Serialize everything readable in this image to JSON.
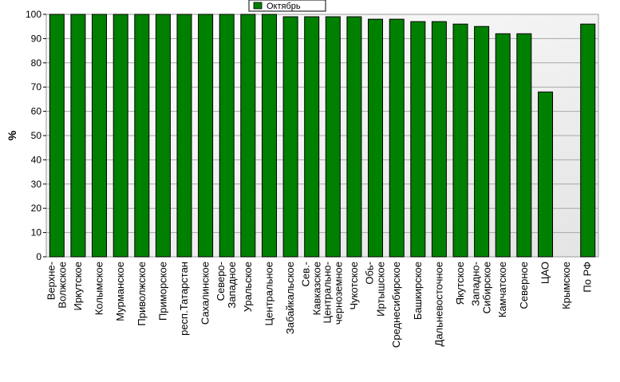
{
  "chart_data": {
    "type": "bar",
    "ylabel": "%",
    "ylim": [
      0,
      100
    ],
    "yticks": [
      0,
      10,
      20,
      30,
      40,
      50,
      60,
      70,
      80,
      90,
      100
    ],
    "grid": true,
    "legend_position": "top-center",
    "bar_color": "#008000",
    "series": [
      {
        "name": "Октябрь"
      }
    ],
    "categories": [
      [
        "Верхне-",
        "Волжское"
      ],
      [
        "Иркутское"
      ],
      [
        "Колымское"
      ],
      [
        "Мурманское"
      ],
      [
        "Приволжское"
      ],
      [
        "Приморское"
      ],
      [
        "респ.Татарстан"
      ],
      [
        "Сахалинское"
      ],
      [
        "Северо-",
        "Западное"
      ],
      [
        "Уральское"
      ],
      [
        "Центральное"
      ],
      [
        "Забайкальское"
      ],
      [
        "Сев.-",
        "Кавказское"
      ],
      [
        "Центрально-",
        "черноземное"
      ],
      [
        "Чукотское"
      ],
      [
        "Обь-",
        "Иртышское"
      ],
      [
        "Среднесибирское"
      ],
      [
        "Башкирское"
      ],
      [
        "Дальневосточное"
      ],
      [
        "Якутское"
      ],
      [
        "Западно-",
        "Сибирское"
      ],
      [
        "Камчатское"
      ],
      [
        "Северное"
      ],
      [
        "ЦАО"
      ],
      [
        "Крымское"
      ],
      [
        "По РФ"
      ]
    ],
    "values": [
      100,
      100,
      100,
      100,
      100,
      100,
      100,
      100,
      100,
      100,
      100,
      99,
      99,
      99,
      99,
      98,
      98,
      97,
      97,
      96,
      95,
      92,
      92,
      68,
      null,
      96
    ]
  }
}
